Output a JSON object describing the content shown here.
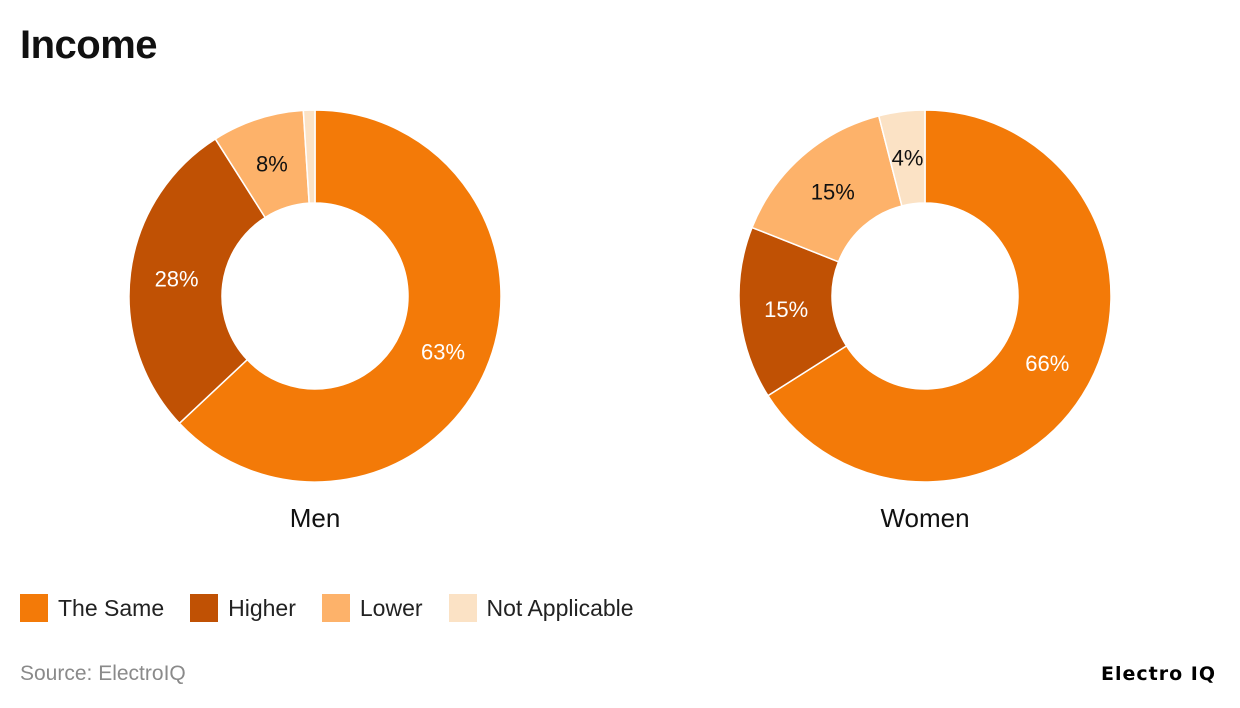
{
  "title": "Income",
  "source": "Source: ElectroIQ",
  "brand": "Electro IQ",
  "legend": [
    {
      "label": "The Same",
      "color": "#F37A08"
    },
    {
      "label": "Higher",
      "color": "#C05104"
    },
    {
      "label": "Lower",
      "color": "#FDB26A"
    },
    {
      "label": "Not Applicable",
      "color": "#FBE2C5"
    }
  ],
  "chart_data": [
    {
      "type": "pie",
      "name": "Men",
      "categories": [
        "The Same",
        "Higher",
        "Lower",
        "Not Applicable"
      ],
      "values": [
        63,
        28,
        8,
        1
      ],
      "labels": [
        "63%",
        "28%",
        "8%",
        ""
      ],
      "colors": [
        "#F37A08",
        "#C05104",
        "#FDB26A",
        "#FBE2C5"
      ],
      "label_colors": [
        "#ffffff",
        "#ffffff",
        "#111111",
        "#111111"
      ]
    },
    {
      "type": "pie",
      "name": "Women",
      "categories": [
        "The Same",
        "Higher",
        "Lower",
        "Not Applicable"
      ],
      "values": [
        66,
        15,
        15,
        4
      ],
      "labels": [
        "66%",
        "15%",
        "15%",
        "4%"
      ],
      "colors": [
        "#F37A08",
        "#C05104",
        "#FDB26A",
        "#FBE2C5"
      ],
      "label_colors": [
        "#ffffff",
        "#ffffff",
        "#111111",
        "#111111"
      ]
    }
  ]
}
